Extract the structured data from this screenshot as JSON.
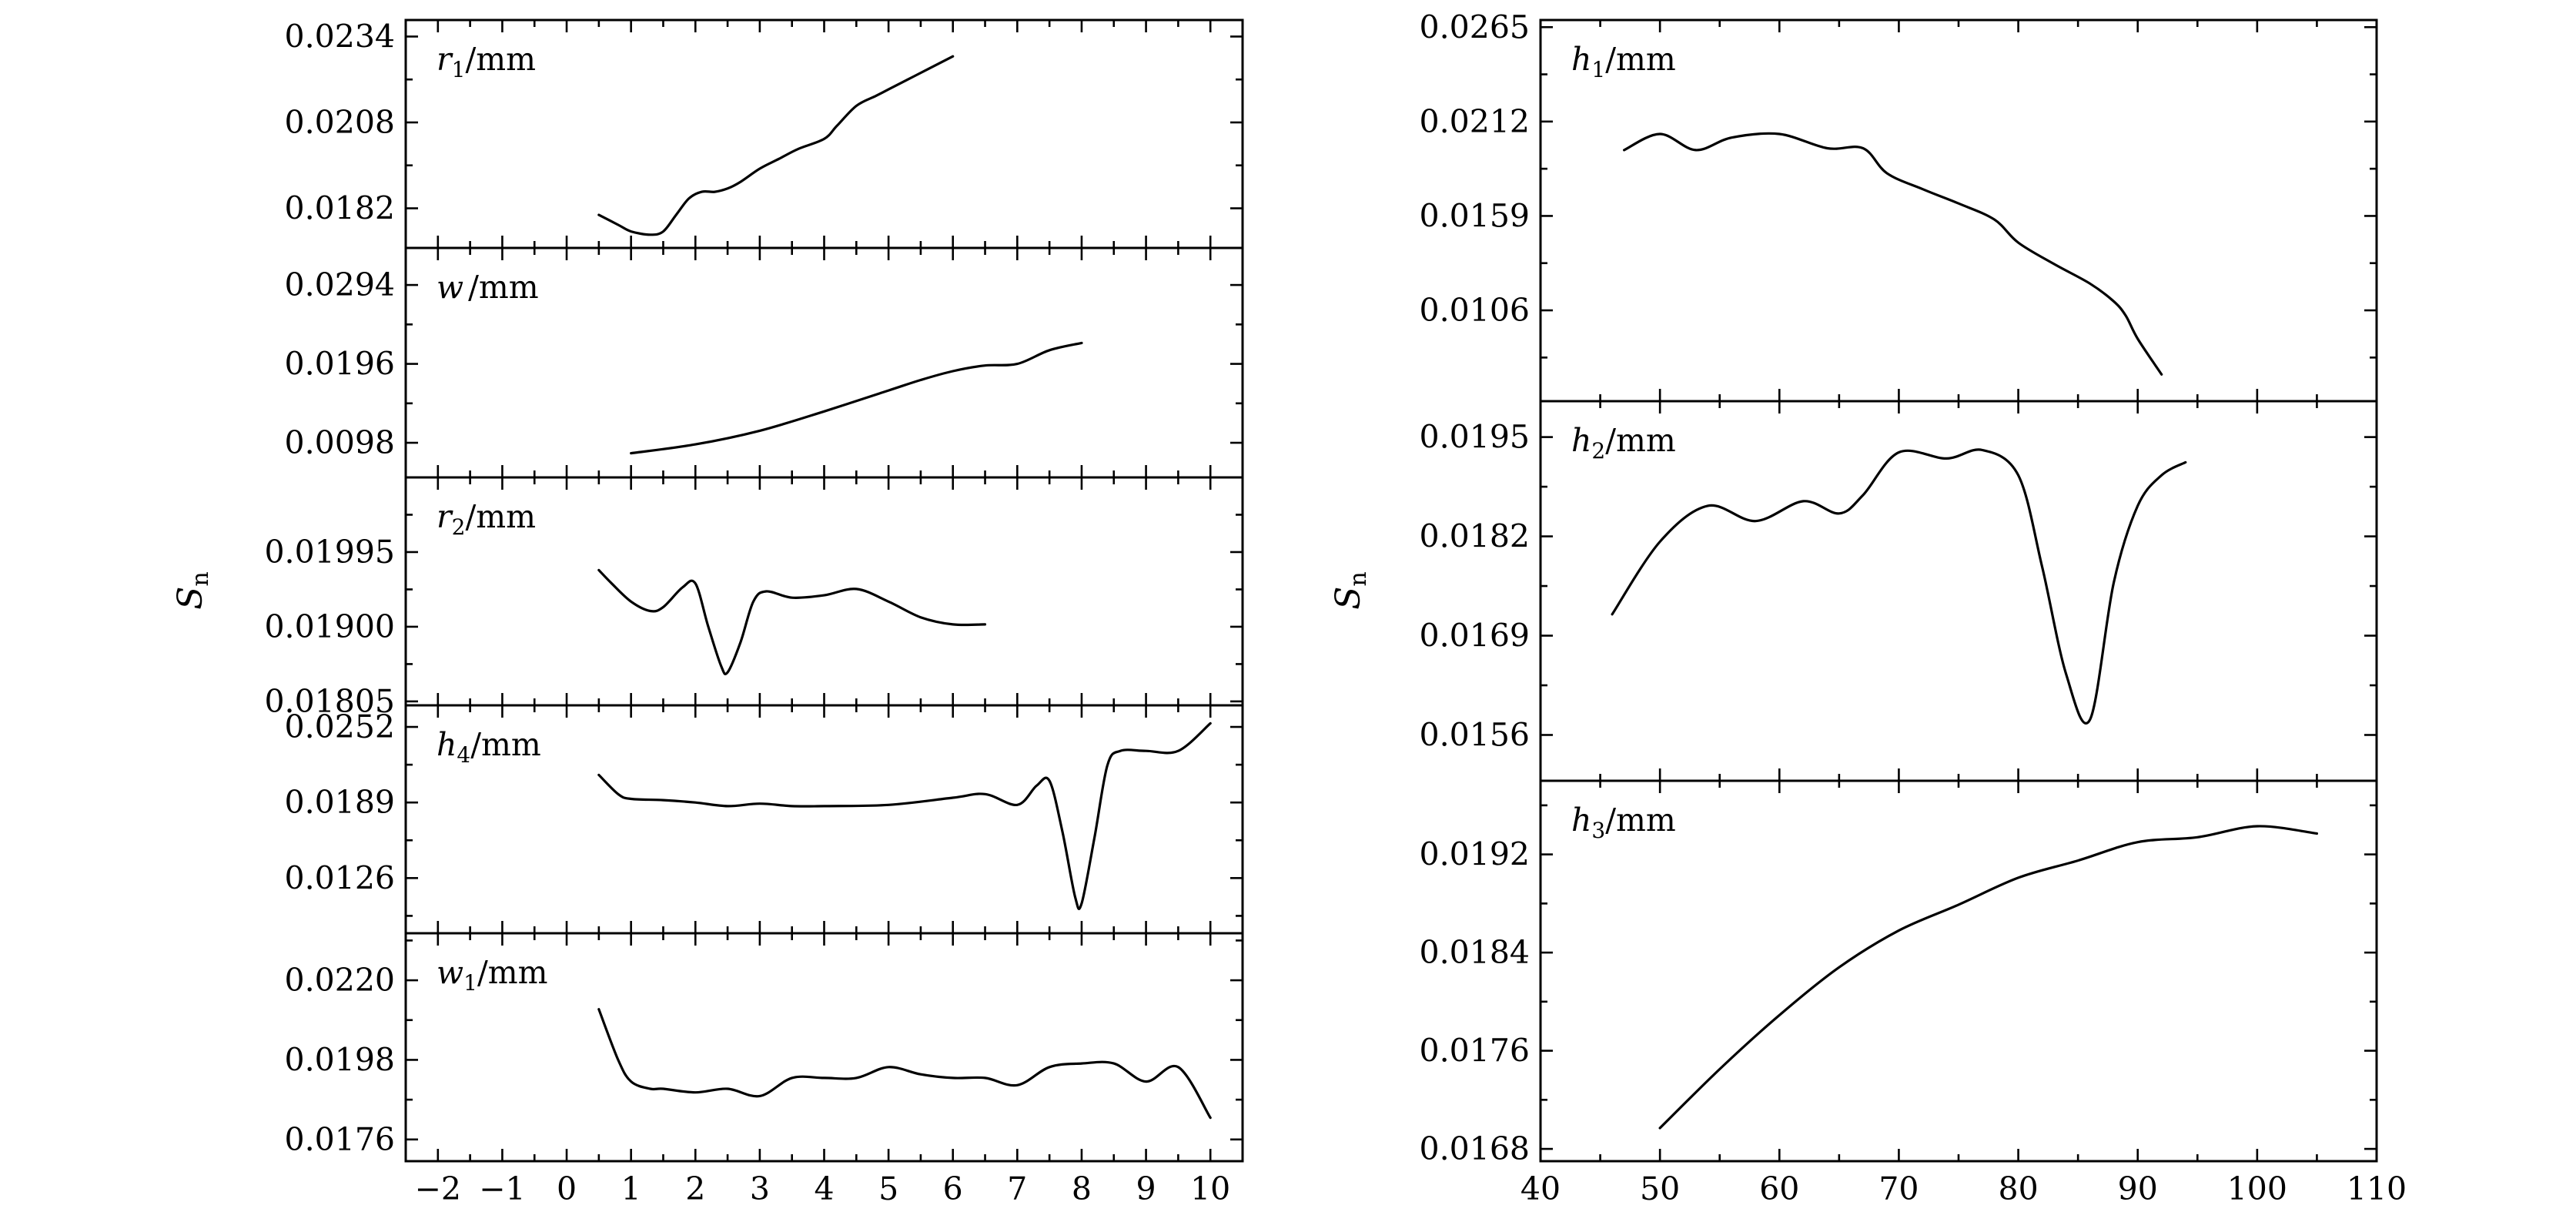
{
  "chart_data": [
    {
      "type": "line",
      "column": "left",
      "ylabel_main": "S",
      "ylabel_sub": "n",
      "xlim": [
        -2.5,
        10.5
      ],
      "xticks": [
        -2,
        -1,
        0,
        1,
        2,
        3,
        4,
        5,
        6,
        7,
        8,
        9,
        10
      ],
      "xtick_labels": [
        "−2",
        "−1",
        "0",
        "1",
        "2",
        "3",
        "4",
        "5",
        "6",
        "7",
        "8",
        "9",
        "10"
      ],
      "panels": [
        {
          "label_var": "r",
          "label_sub": "1",
          "label_unit": "/mm",
          "ylim": [
            0.017,
            0.0239
          ],
          "yticks": [
            0.0182,
            0.0208,
            0.0234
          ],
          "ytick_labels": [
            "0.0182",
            "0.0208",
            "0.0234"
          ],
          "x": [
            0.5,
            0.8,
            1.0,
            1.3,
            1.5,
            1.7,
            1.9,
            2.1,
            2.3,
            2.5,
            2.7,
            3.0,
            3.3,
            3.6,
            4.0,
            4.2,
            4.5,
            4.8,
            5.0,
            5.3,
            5.6,
            6.0
          ],
          "y": [
            0.018,
            0.0177,
            0.0175,
            0.0174,
            0.0175,
            0.018,
            0.0185,
            0.0187,
            0.0187,
            0.0188,
            0.019,
            0.0194,
            0.0197,
            0.02,
            0.0203,
            0.0207,
            0.0213,
            0.0216,
            0.0218,
            0.0221,
            0.0224,
            0.0228
          ]
        },
        {
          "label_var": "w",
          "label_sub": "",
          "label_unit": "/mm",
          "ylim": [
            0.0055,
            0.034
          ],
          "yticks": [
            0.0098,
            0.0196,
            0.0294
          ],
          "ytick_labels": [
            "0.0098",
            "0.0196",
            "0.0294"
          ],
          "x": [
            1.0,
            2.0,
            3.0,
            4.0,
            5.0,
            5.5,
            6.0,
            6.5,
            7.0,
            7.5,
            8.0
          ],
          "y": [
            0.0085,
            0.0096,
            0.0113,
            0.0137,
            0.0163,
            0.0176,
            0.0187,
            0.0194,
            0.0196,
            0.0213,
            0.0222
          ]
        },
        {
          "label_var": "r",
          "label_sub": "2",
          "label_unit": "/mm",
          "ylim": [
            0.018,
            0.0209
          ],
          "yticks": [
            0.01805,
            0.019,
            0.01995
          ],
          "ytick_labels": [
            "0.01805",
            "0.01900",
            "0.01995"
          ],
          "x": [
            0.5,
            0.7,
            1.0,
            1.3,
            1.5,
            1.8,
            2.0,
            2.2,
            2.4,
            2.5,
            2.7,
            2.9,
            3.1,
            3.5,
            4.0,
            4.5,
            5.0,
            5.5,
            6.0,
            6.5
          ],
          "y": [
            0.01972,
            0.01955,
            0.01932,
            0.0192,
            0.01925,
            0.0195,
            0.01955,
            0.019,
            0.0185,
            0.01842,
            0.0188,
            0.01932,
            0.01945,
            0.01937,
            0.0194,
            0.01948,
            0.01932,
            0.01912,
            0.01903,
            0.01903
          ]
        },
        {
          "label_var": "h",
          "label_sub": "4",
          "label_unit": "/mm",
          "ylim": [
            0.008,
            0.027
          ],
          "yticks": [
            0.0126,
            0.0189,
            0.0252
          ],
          "ytick_labels": [
            "0.0126",
            "0.0189",
            "0.0252"
          ],
          "x": [
            0.5,
            0.8,
            1.0,
            1.5,
            2.0,
            2.5,
            3.0,
            3.5,
            4.0,
            5.0,
            6.0,
            6.5,
            7.0,
            7.3,
            7.5,
            7.7,
            7.9,
            8.0,
            8.2,
            8.4,
            8.6,
            9.0,
            9.5,
            10.0
          ],
          "y": [
            0.0212,
            0.0196,
            0.0192,
            0.0191,
            0.0189,
            0.0186,
            0.0188,
            0.0186,
            0.0186,
            0.0187,
            0.0193,
            0.0196,
            0.0187,
            0.0203,
            0.0207,
            0.0165,
            0.011,
            0.0105,
            0.016,
            0.022,
            0.0232,
            0.0232,
            0.0232,
            0.0255
          ]
        },
        {
          "label_var": "w",
          "label_sub": "1",
          "label_unit": "/mm",
          "ylim": [
            0.017,
            0.0233
          ],
          "yticks": [
            0.0176,
            0.0198,
            0.022
          ],
          "ytick_labels": [
            "0.0176",
            "0.0198",
            "0.0220"
          ],
          "x": [
            0.5,
            0.8,
            1.0,
            1.3,
            1.5,
            2.0,
            2.5,
            3.0,
            3.5,
            4.0,
            4.5,
            5.0,
            5.5,
            6.0,
            6.5,
            7.0,
            7.5,
            8.0,
            8.5,
            9.0,
            9.5,
            10.0
          ],
          "y": [
            0.0212,
            0.0198,
            0.0192,
            0.019,
            0.019,
            0.0189,
            0.019,
            0.0188,
            0.0193,
            0.0193,
            0.0193,
            0.0196,
            0.0194,
            0.0193,
            0.0193,
            0.0191,
            0.0196,
            0.0197,
            0.0197,
            0.0192,
            0.0196,
            0.0182
          ]
        }
      ]
    },
    {
      "type": "line",
      "column": "right",
      "ylabel_main": "S",
      "ylabel_sub": "n",
      "xlim": [
        40,
        110
      ],
      "xticks": [
        40,
        50,
        60,
        70,
        80,
        90,
        100,
        110
      ],
      "xtick_labels": [
        "40",
        "50",
        "60",
        "70",
        "80",
        "90",
        "100",
        "110"
      ],
      "panels": [
        {
          "label_var": "h",
          "label_sub": "1",
          "label_unit": "/mm",
          "ylim": [
            0.0055,
            0.0269
          ],
          "yticks": [
            0.0106,
            0.0159,
            0.0212,
            0.0265
          ],
          "ytick_labels": [
            "0.0106",
            "0.0159",
            "0.0212",
            "0.0265"
          ],
          "x": [
            47,
            50,
            53,
            56,
            60,
            64,
            67,
            69,
            72,
            75,
            78,
            80,
            83,
            86,
            88,
            89,
            90,
            92
          ],
          "y": [
            0.0196,
            0.0205,
            0.0196,
            0.0203,
            0.0205,
            0.0197,
            0.0197,
            0.0183,
            0.0174,
            0.0166,
            0.0157,
            0.0144,
            0.0132,
            0.0121,
            0.0111,
            0.0103,
            0.009,
            0.007
          ]
        },
        {
          "label_var": "h",
          "label_sub": "2",
          "label_unit": "/mm",
          "ylim": [
            0.015,
            0.01997
          ],
          "yticks": [
            0.0156,
            0.0169,
            0.0182,
            0.0195
          ],
          "ytick_labels": [
            "0.0156",
            "0.0169",
            "0.0182",
            "0.0195"
          ],
          "x": [
            46,
            50,
            54,
            58,
            62,
            65,
            67,
            70,
            74,
            77,
            80,
            82,
            84,
            86,
            88,
            90,
            92,
            94
          ],
          "y": [
            0.01718,
            0.01813,
            0.0186,
            0.0184,
            0.01866,
            0.0185,
            0.01874,
            0.0193,
            0.01922,
            0.01933,
            0.019,
            0.0178,
            0.0164,
            0.0158,
            0.0176,
            0.0186,
            0.019,
            0.01917
          ]
        },
        {
          "label_var": "h",
          "label_sub": "3",
          "label_unit": "/mm",
          "ylim": [
            0.0167,
            0.0198
          ],
          "yticks": [
            0.0168,
            0.0176,
            0.0184,
            0.0192
          ],
          "ytick_labels": [
            "0.0168",
            "0.0176",
            "0.0184",
            "0.0192"
          ],
          "x": [
            50,
            55,
            60,
            65,
            70,
            75,
            80,
            85,
            90,
            95,
            100,
            105
          ],
          "y": [
            0.01697,
            0.01745,
            0.01789,
            0.01828,
            0.01858,
            0.01879,
            0.01901,
            0.01915,
            0.0193,
            0.01934,
            0.01943,
            0.01937
          ]
        }
      ]
    }
  ]
}
